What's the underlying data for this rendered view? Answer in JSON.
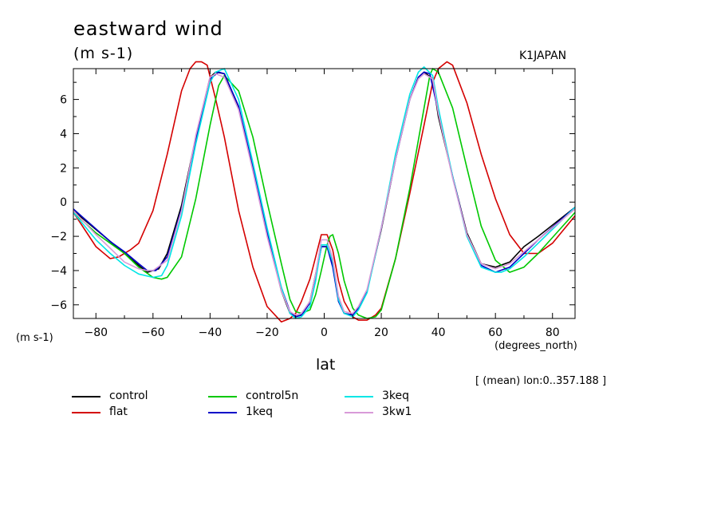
{
  "chart_data": {
    "type": "line",
    "title": "eastward wind",
    "units": "(m s-1)",
    "source_label": "K1JAPAN",
    "ylabel": "(m s-1)",
    "xlabel": "lat",
    "xunits": "(degrees_north)",
    "note": "[ (mean) lon:0..357.188 ]",
    "xlim": [
      -87.9,
      87.9
    ],
    "ylim": [
      -6.8,
      7.8
    ],
    "xticks": [
      -80,
      -60,
      -40,
      -20,
      0,
      20,
      40,
      60,
      80
    ],
    "yticks": [
      -6,
      -4,
      -2,
      0,
      2,
      4,
      6
    ],
    "grid": false,
    "legend_position": "bottom",
    "series": [
      {
        "name": "control",
        "color": "#000000",
        "x": [
          -87.9,
          -75,
          -70,
          -65,
          -62,
          -58,
          -55,
          -50,
          -45,
          -40,
          -38,
          -35,
          -30,
          -25,
          -20,
          -15,
          -12,
          -10,
          -8,
          -5,
          -3,
          -1,
          1,
          3,
          5,
          7,
          10,
          12,
          15,
          20,
          25,
          30,
          33,
          35,
          38,
          40,
          45,
          50,
          55,
          60,
          65,
          70,
          75,
          87.9
        ],
        "y": [
          -0.5,
          -2.3,
          -3.0,
          -3.7,
          -4.1,
          -3.9,
          -3.0,
          -0.2,
          3.8,
          7.3,
          7.6,
          7.5,
          5.5,
          2.0,
          -1.8,
          -5.2,
          -6.5,
          -6.7,
          -6.6,
          -5.8,
          -4.2,
          -2.6,
          -2.6,
          -3.6,
          -5.6,
          -6.5,
          -6.6,
          -6.2,
          -5.2,
          -1.6,
          2.5,
          6.0,
          7.3,
          7.6,
          7.2,
          5.0,
          1.5,
          -1.8,
          -3.6,
          -3.8,
          -3.5,
          -2.6,
          -2.0,
          -0.3
        ]
      },
      {
        "name": "flat",
        "color": "#d40000",
        "x": [
          -87.9,
          -80,
          -75,
          -72,
          -68,
          -65,
          -60,
          -55,
          -50,
          -47,
          -45,
          -43,
          -41,
          -38,
          -35,
          -30,
          -25,
          -20,
          -15,
          -12,
          -10,
          -8,
          -5,
          -3,
          -1,
          1,
          3,
          5,
          7,
          10,
          12,
          15,
          18,
          20,
          25,
          30,
          35,
          38,
          40,
          43,
          45,
          50,
          55,
          60,
          65,
          70,
          75,
          80,
          87.9
        ],
        "y": [
          -0.6,
          -2.6,
          -3.3,
          -3.2,
          -2.8,
          -2.4,
          -0.5,
          2.8,
          6.5,
          7.8,
          8.2,
          8.2,
          8.0,
          6.0,
          3.8,
          -0.5,
          -3.8,
          -6.1,
          -7.0,
          -6.8,
          -6.5,
          -5.8,
          -4.5,
          -3.2,
          -1.9,
          -1.9,
          -2.8,
          -4.6,
          -5.8,
          -6.7,
          -6.9,
          -6.9,
          -6.6,
          -6.2,
          -3.3,
          0.5,
          4.5,
          7.0,
          7.8,
          8.2,
          8.0,
          5.8,
          2.8,
          0.2,
          -1.9,
          -3.0,
          -3.0,
          -2.4,
          -0.8
        ]
      },
      {
        "name": "control5n",
        "color": "#00c800",
        "x": [
          -87.9,
          -80,
          -75,
          -70,
          -65,
          -60,
          -57,
          -55,
          -50,
          -45,
          -40,
          -37,
          -35,
          -30,
          -25,
          -20,
          -15,
          -12,
          -10,
          -8,
          -5,
          -3,
          -1,
          1,
          2,
          3,
          5,
          7,
          9,
          10,
          12,
          15,
          18,
          20,
          25,
          30,
          35,
          37,
          38,
          40,
          45,
          50,
          55,
          60,
          65,
          70,
          75,
          87.9
        ],
        "y": [
          -0.6,
          -1.8,
          -2.4,
          -3.0,
          -3.8,
          -4.4,
          -4.5,
          -4.4,
          -3.2,
          0.2,
          4.5,
          6.8,
          7.4,
          6.5,
          3.8,
          0.0,
          -3.6,
          -5.7,
          -6.4,
          -6.5,
          -6.3,
          -5.4,
          -4.0,
          -2.5,
          -2.0,
          -1.9,
          -3.0,
          -4.6,
          -5.7,
          -6.2,
          -6.6,
          -6.8,
          -6.7,
          -6.3,
          -3.3,
          0.8,
          5.5,
          7.4,
          7.8,
          7.6,
          5.5,
          2.0,
          -1.4,
          -3.4,
          -4.1,
          -3.8,
          -3.0,
          -0.6
        ]
      },
      {
        "name": "1keq",
        "color": "#0000c8",
        "x": [
          -87.9,
          -75,
          -70,
          -65,
          -62,
          -59,
          -55,
          -50,
          -45,
          -40,
          -37,
          -35,
          -30,
          -25,
          -20,
          -15,
          -12,
          -10,
          -8,
          -5,
          -3,
          -1,
          1,
          3,
          5,
          7,
          10,
          12,
          15,
          20,
          25,
          30,
          33,
          35,
          37,
          40,
          45,
          50,
          55,
          60,
          65,
          70,
          75,
          87.9
        ],
        "y": [
          -0.4,
          -2.3,
          -2.9,
          -3.6,
          -4.0,
          -4.0,
          -3.2,
          -0.4,
          3.6,
          7.2,
          7.6,
          7.5,
          5.6,
          2.0,
          -1.8,
          -5.0,
          -6.4,
          -6.7,
          -6.6,
          -5.9,
          -4.4,
          -2.6,
          -2.6,
          -3.8,
          -5.8,
          -6.5,
          -6.6,
          -6.2,
          -5.2,
          -1.5,
          2.5,
          6.0,
          7.3,
          7.6,
          7.5,
          5.3,
          1.5,
          -1.9,
          -3.7,
          -4.1,
          -3.8,
          -3.0,
          -2.2,
          -0.3
        ]
      },
      {
        "name": "3keq",
        "color": "#00e6e6",
        "x": [
          -87.9,
          -80,
          -75,
          -70,
          -65,
          -60,
          -57,
          -55,
          -50,
          -45,
          -40,
          -38,
          -35,
          -30,
          -25,
          -20,
          -15,
          -12,
          -10,
          -8,
          -5,
          -3,
          -1,
          1,
          3,
          5,
          7,
          10,
          12,
          15,
          20,
          25,
          30,
          33,
          35,
          38,
          40,
          45,
          50,
          55,
          60,
          62,
          65,
          70,
          75,
          87.9
        ],
        "y": [
          -0.6,
          -2.2,
          -3.0,
          -3.7,
          -4.2,
          -4.4,
          -4.3,
          -3.7,
          -0.8,
          3.4,
          7.0,
          7.6,
          7.8,
          6.0,
          2.3,
          -1.5,
          -5.0,
          -6.5,
          -6.8,
          -6.7,
          -6.1,
          -4.6,
          -2.5,
          -2.5,
          -3.5,
          -5.7,
          -6.5,
          -6.7,
          -6.3,
          -5.3,
          -1.5,
          2.8,
          6.3,
          7.6,
          7.9,
          7.4,
          5.5,
          1.5,
          -2.0,
          -3.8,
          -4.1,
          -4.1,
          -3.9,
          -3.2,
          -2.4,
          -0.3
        ]
      },
      {
        "name": "3kw1",
        "color": "#d89ad8",
        "x": [
          -87.9,
          -80,
          -75,
          -70,
          -65,
          -62,
          -60,
          -55,
          -50,
          -45,
          -40,
          -38,
          -35,
          -30,
          -25,
          -20,
          -15,
          -12,
          -10,
          -8,
          -5,
          -3,
          -1,
          1,
          3,
          5,
          7,
          10,
          12,
          15,
          20,
          25,
          30,
          33,
          35,
          38,
          40,
          45,
          50,
          55,
          60,
          65,
          70,
          75,
          87.9
        ],
        "y": [
          -0.5,
          -1.9,
          -2.7,
          -3.5,
          -3.9,
          -4.0,
          -4.0,
          -3.4,
          -0.5,
          3.9,
          7.3,
          7.5,
          7.3,
          5.4,
          1.8,
          -2.0,
          -5.2,
          -6.4,
          -6.6,
          -6.5,
          -5.8,
          -4.2,
          -2.2,
          -2.2,
          -3.3,
          -5.5,
          -6.4,
          -6.5,
          -6.1,
          -5.1,
          -1.5,
          2.5,
          6.0,
          7.2,
          7.5,
          7.2,
          5.2,
          1.4,
          -1.9,
          -3.6,
          -3.9,
          -3.6,
          -2.9,
          -2.2,
          -0.4
        ]
      }
    ]
  }
}
